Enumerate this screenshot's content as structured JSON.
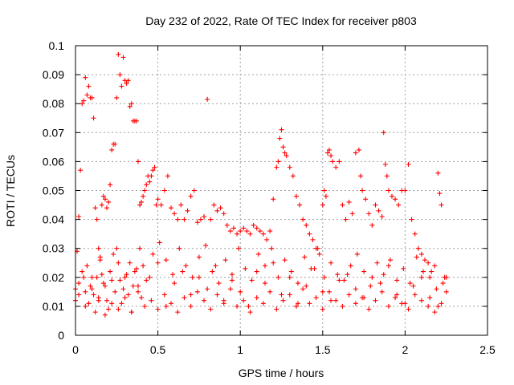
{
  "chart_data": {
    "type": "scatter",
    "title": "Day 232 of 2022, Rate Of TEC Index for receiver p803",
    "xlabel": "GPS time / hours",
    "ylabel": "ROTI / TECUs",
    "xlim": [
      0,
      2.5
    ],
    "ylim": [
      0,
      0.1
    ],
    "xticks": [
      "0",
      "0.5",
      "1",
      "1.5",
      "2",
      "2.5"
    ],
    "yticks": [
      "0",
      "0.01",
      "0.02",
      "0.03",
      "0.04",
      "0.05",
      "0.06",
      "0.07",
      "0.08",
      "0.09",
      "0.1"
    ],
    "grid": true,
    "legend": "none",
    "marker": "+",
    "color": "#ff0000",
    "series": [
      {
        "x": [
          0.0,
          0.01,
          0.02,
          0.03,
          0.04,
          0.05,
          0.06,
          0.07,
          0.08,
          0.09,
          0.1,
          0.11,
          0.12,
          0.13,
          0.14,
          0.15,
          0.16,
          0.17,
          0.18,
          0.19,
          0.2,
          0.21,
          0.22,
          0.23,
          0.24,
          0.25,
          0.26,
          0.27,
          0.28,
          0.29,
          0.3,
          0.31,
          0.32,
          0.33,
          0.34,
          0.35,
          0.36,
          0.37,
          0.38,
          0.39,
          0.4,
          0.41,
          0.42,
          0.43,
          0.44,
          0.45,
          0.46,
          0.47,
          0.48,
          0.49,
          0.5,
          0.52,
          0.54,
          0.56,
          0.58,
          0.6,
          0.62,
          0.64,
          0.66,
          0.68,
          0.7,
          0.72,
          0.74,
          0.76,
          0.78,
          0.8,
          0.82,
          0.84,
          0.86,
          0.88,
          0.9,
          0.92,
          0.94,
          0.96,
          0.98,
          1.0,
          1.02,
          1.04,
          1.06,
          1.08,
          1.1,
          1.12,
          1.14,
          1.16,
          1.18,
          1.2,
          1.22,
          1.23,
          1.24,
          1.25,
          1.26,
          1.27,
          1.28,
          1.3,
          1.32,
          1.34,
          1.36,
          1.38,
          1.4,
          1.42,
          1.44,
          1.46,
          1.48,
          1.5,
          1.51,
          1.52,
          1.53,
          1.54,
          1.55,
          1.56,
          1.58,
          1.6,
          1.62,
          1.64,
          1.66,
          1.68,
          1.7,
          1.72,
          1.73,
          1.74,
          1.76,
          1.78,
          1.8,
          1.82,
          1.84,
          1.86,
          1.87,
          1.88,
          1.89,
          1.9,
          1.92,
          1.94,
          1.96,
          1.98,
          2.0,
          2.02,
          2.04,
          2.06,
          2.08,
          2.1,
          2.12,
          2.14,
          2.16,
          2.18,
          2.2,
          2.21,
          2.22,
          2.24,
          2.25,
          0.0,
          0.02,
          0.04,
          0.06,
          0.08,
          0.1,
          0.12,
          0.14,
          0.16,
          0.18,
          0.2,
          0.22,
          0.24,
          0.26,
          0.28,
          0.3,
          0.32,
          0.34,
          0.36,
          0.38,
          0.4,
          0.45,
          0.5,
          0.55,
          0.6,
          0.65,
          0.7,
          0.75,
          0.8,
          0.85,
          0.9,
          0.95,
          1.0,
          1.05,
          1.1,
          1.15,
          1.2,
          1.25,
          1.3,
          1.35,
          1.4,
          1.45,
          1.5,
          1.55,
          1.6,
          1.65,
          1.7,
          1.75,
          1.8,
          1.85,
          1.9,
          1.95,
          2.0,
          2.05,
          2.1,
          2.15,
          2.2,
          2.25,
          0.05,
          0.07,
          0.09,
          0.11,
          0.13,
          0.15,
          0.17,
          0.19,
          0.21,
          0.23,
          0.25,
          0.27,
          0.29,
          0.31,
          0.33,
          0.35,
          0.37,
          0.39,
          0.41,
          0.43,
          0.47,
          0.51,
          0.55,
          0.59,
          0.63,
          0.67,
          0.71,
          0.75,
          0.79,
          0.83,
          0.87,
          0.91,
          0.95,
          0.99,
          1.03,
          1.07,
          1.11,
          1.15,
          1.19,
          1.23,
          1.27,
          1.31,
          1.35,
          1.39,
          1.43,
          1.47,
          1.51,
          1.55,
          1.59,
          1.63,
          1.67,
          1.71,
          1.75,
          1.79,
          1.83,
          1.87,
          1.91,
          1.95,
          1.99,
          2.03,
          2.07,
          2.11,
          2.15,
          2.19,
          2.23,
          0.02,
          0.06,
          0.1,
          0.14,
          0.18,
          0.22,
          0.26,
          0.3,
          0.34,
          0.38,
          0.42,
          0.46,
          0.5,
          0.54,
          0.58,
          0.62,
          0.66,
          0.7,
          0.74,
          0.78,
          0.82,
          0.86,
          0.9,
          0.94,
          0.98,
          1.02,
          1.06,
          1.1,
          1.14,
          1.18,
          1.22,
          1.26,
          1.3,
          1.34,
          1.38,
          1.42,
          1.46,
          1.5,
          1.54,
          1.58,
          1.62,
          1.66,
          1.7,
          1.74,
          1.78,
          1.82,
          1.86,
          1.9,
          1.94,
          1.98,
          2.02,
          2.06,
          2.1,
          2.14,
          2.18,
          2.22
        ],
        "y": [
          0.016,
          0.029,
          0.041,
          0.057,
          0.08,
          0.081,
          0.089,
          0.083,
          0.086,
          0.082,
          0.082,
          0.075,
          0.044,
          0.04,
          0.03,
          0.027,
          0.045,
          0.048,
          0.047,
          0.044,
          0.046,
          0.052,
          0.064,
          0.066,
          0.066,
          0.082,
          0.097,
          0.09,
          0.086,
          0.096,
          0.088,
          0.087,
          0.088,
          0.079,
          0.08,
          0.074,
          0.074,
          0.074,
          0.06,
          0.045,
          0.046,
          0.048,
          0.05,
          0.052,
          0.055,
          0.053,
          0.055,
          0.057,
          0.058,
          0.045,
          0.047,
          0.045,
          0.05,
          0.055,
          0.044,
          0.042,
          0.04,
          0.045,
          0.04,
          0.043,
          0.048,
          0.05,
          0.039,
          0.04,
          0.041,
          0.0815,
          0.04,
          0.045,
          0.043,
          0.044,
          0.042,
          0.038,
          0.036,
          0.037,
          0.035,
          0.036,
          0.037,
          0.036,
          0.035,
          0.038,
          0.037,
          0.036,
          0.035,
          0.033,
          0.036,
          0.047,
          0.058,
          0.06,
          0.068,
          0.071,
          0.065,
          0.063,
          0.062,
          0.058,
          0.055,
          0.048,
          0.045,
          0.04,
          0.038,
          0.035,
          0.033,
          0.03,
          0.028,
          0.045,
          0.05,
          0.048,
          0.063,
          0.064,
          0.062,
          0.06,
          0.058,
          0.06,
          0.045,
          0.04,
          0.046,
          0.042,
          0.063,
          0.064,
          0.055,
          0.05,
          0.047,
          0.042,
          0.038,
          0.045,
          0.043,
          0.041,
          0.07,
          0.059,
          0.055,
          0.05,
          0.048,
          0.047,
          0.045,
          0.05,
          0.05,
          0.059,
          0.04,
          0.035,
          0.03,
          0.028,
          0.026,
          0.025,
          0.022,
          0.024,
          0.056,
          0.049,
          0.045,
          0.02,
          0.02,
          0.012,
          0.018,
          0.022,
          0.015,
          0.011,
          0.02,
          0.008,
          0.013,
          0.021,
          0.017,
          0.009,
          0.019,
          0.015,
          0.025,
          0.011,
          0.02,
          0.014,
          0.008,
          0.022,
          0.017,
          0.013,
          0.02,
          0.025,
          0.01,
          0.018,
          0.022,
          0.014,
          0.02,
          0.016,
          0.024,
          0.012,
          0.019,
          0.015,
          0.01,
          0.022,
          0.018,
          0.025,
          0.014,
          0.02,
          0.011,
          0.017,
          0.023,
          0.015,
          0.012,
          0.019,
          0.021,
          0.016,
          0.013,
          0.02,
          0.018,
          0.024,
          0.014,
          0.011,
          0.017,
          0.02,
          0.013,
          0.01,
          0.015,
          0.02,
          0.024,
          0.017,
          0.014,
          0.02,
          0.026,
          0.018,
          0.012,
          0.022,
          0.028,
          0.03,
          0.019,
          0.016,
          0.021,
          0.025,
          0.017,
          0.023,
          0.03,
          0.024,
          0.019,
          0.028,
          0.032,
          0.026,
          0.021,
          0.03,
          0.024,
          0.02,
          0.027,
          0.031,
          0.022,
          0.018,
          0.026,
          0.021,
          0.03,
          0.023,
          0.019,
          0.028,
          0.024,
          0.03,
          0.02,
          0.026,
          0.022,
          0.018,
          0.027,
          0.023,
          0.03,
          0.02,
          0.025,
          0.021,
          0.019,
          0.024,
          0.028,
          0.022,
          0.017,
          0.025,
          0.021,
          0.026,
          0.019,
          0.023,
          0.018,
          0.027,
          0.022,
          0.02,
          0.016,
          0.018,
          0.014,
          0.01,
          0.016,
          0.012,
          0.007,
          0.011,
          0.009,
          0.013,
          0.008,
          0.015,
          0.01,
          0.012,
          0.009,
          0.014,
          0.011,
          0.008,
          0.013,
          0.01,
          0.015,
          0.012,
          0.009,
          0.014,
          0.011,
          0.016,
          0.01,
          0.012,
          0.008,
          0.013,
          0.011,
          0.015,
          0.009,
          0.012,
          0.014,
          0.01,
          0.016,
          0.011,
          0.013,
          0.009,
          0.015,
          0.012,
          0.01,
          0.014,
          0.011,
          0.013,
          0.009,
          0.012,
          0.015,
          0.01,
          0.013,
          0.011,
          0.009,
          0.014,
          0.012,
          0.01,
          0.008,
          0.011
        ]
      }
    ]
  }
}
